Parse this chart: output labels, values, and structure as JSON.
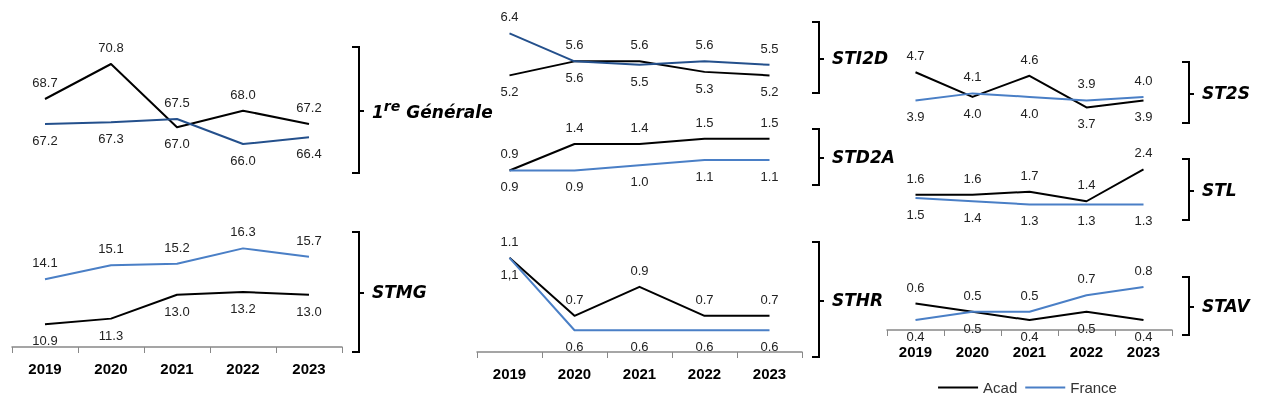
{
  "chart_data": [
    {
      "type": "line",
      "ylabel": "1$^{re}$ Générale",
      "categories": [
        "2019",
        "2020",
        "2021",
        "2022",
        "2023"
      ],
      "tick_labels": false,
      "marker": "none",
      "grid": false,
      "legend": false,
      "series": [
        {
          "color": "#000000",
          "values": [
            68.7,
            70.8,
            67.0,
            68.0,
            67.2
          ],
          "value_labels": [
            "68.7",
            "70.8",
            "67.0",
            "68.0",
            "67.2"
          ]
        },
        {
          "color": "#24508c",
          "values": [
            67.2,
            67.3,
            67.5,
            66.0,
            66.4
          ],
          "value_labels": [
            "67.2",
            "67.3",
            "67.5",
            "66.0",
            "66.4"
          ]
        }
      ]
    },
    {
      "type": "line",
      "ylabel": "STMG",
      "categories": [
        "2019",
        "2020",
        "2021",
        "2022",
        "2023"
      ],
      "tick_labels": "x",
      "marker": "none",
      "grid": false,
      "legend": false,
      "series": [
        {
          "color": "#000000",
          "values": [
            10.9,
            11.3,
            13.0,
            13.2,
            13.0
          ],
          "value_labels": [
            "10.9",
            "11.3",
            "13.0",
            "13.2",
            "13.0"
          ]
        },
        {
          "color": "#4a7fc6",
          "values": [
            14.1,
            15.1,
            15.2,
            16.3,
            15.7
          ],
          "value_labels": [
            "14.1",
            "15.1",
            "15.2",
            "16.3",
            "15.7"
          ]
        }
      ]
    },
    {
      "type": "line",
      "ylabel": "STI2D",
      "categories": [
        "2019",
        "2020",
        "2021",
        "2022",
        "2023"
      ],
      "tick_labels": false,
      "marker": "none",
      "grid": false,
      "legend": false,
      "series": [
        {
          "color": "#000000",
          "values": [
            5.2,
            5.6,
            5.6,
            5.3,
            5.2
          ],
          "value_labels": [
            "5.2",
            "5.6",
            "5.6",
            "5.3",
            "5.2"
          ]
        },
        {
          "color": "#24508c",
          "values": [
            6.4,
            5.6,
            5.5,
            5.6,
            5.5
          ],
          "value_labels": [
            "6.4",
            "5.6",
            "5.5",
            "5.6",
            "5.5"
          ]
        }
      ]
    },
    {
      "type": "line",
      "ylabel": "STD2A",
      "categories": [
        "2019",
        "2020",
        "2021",
        "2022",
        "2023"
      ],
      "tick_labels": false,
      "marker": "none",
      "grid": false,
      "legend": false,
      "series": [
        {
          "color": "#000000",
          "values": [
            0.9,
            1.4,
            1.4,
            1.5,
            1.5
          ],
          "value_labels": [
            "0.9",
            "1.4",
            "1.4",
            "1.5",
            "1.5"
          ]
        },
        {
          "color": "#4a7fc6",
          "values": [
            0.9,
            0.9,
            1.0,
            1.1,
            1.1
          ],
          "value_labels": [
            "0.9",
            "0.9",
            "1.0",
            "1.1",
            "1.1"
          ]
        }
      ]
    },
    {
      "type": "line",
      "ylabel": "STHR",
      "categories": [
        "2019",
        "2020",
        "2021",
        "2022",
        "2023"
      ],
      "tick_labels": "x",
      "marker": "none",
      "grid": false,
      "legend": false,
      "series": [
        {
          "color": "#000000",
          "values": [
            1.1,
            0.7,
            0.9,
            0.7,
            0.7
          ],
          "value_labels": [
            "1.1",
            "0.7",
            "0.9",
            "0.7",
            "0.7"
          ]
        },
        {
          "color": "#4a7fc6",
          "values": [
            1.1,
            0.6,
            0.6,
            0.6,
            0.6
          ],
          "value_labels": [
            "1,1",
            "0.6",
            "0.6",
            "0.6",
            "0.6"
          ]
        }
      ]
    },
    {
      "type": "line",
      "ylabel": "ST2S",
      "categories": [
        "2019",
        "2020",
        "2021",
        "2022",
        "2023"
      ],
      "tick_labels": false,
      "marker": "none",
      "grid": false,
      "legend": false,
      "series": [
        {
          "color": "#000000",
          "values": [
            4.7,
            4.0,
            4.6,
            3.7,
            3.9
          ],
          "value_labels": [
            "4.7",
            "4.0",
            "4.6",
            "3.7",
            "3.9"
          ]
        },
        {
          "color": "#4a7fc6",
          "values": [
            3.9,
            4.1,
            4.0,
            3.9,
            4.0
          ],
          "value_labels": [
            "3.9",
            "4.1",
            "4.0",
            "3.9",
            "4.0"
          ]
        }
      ]
    },
    {
      "type": "line",
      "ylabel": "STL",
      "categories": [
        "2019",
        "2020",
        "2021",
        "2022",
        "2023"
      ],
      "tick_labels": false,
      "marker": "none",
      "grid": false,
      "legend": false,
      "series": [
        {
          "color": "#000000",
          "values": [
            1.6,
            1.6,
            1.7,
            1.4,
            2.4
          ],
          "value_labels": [
            "1.6",
            "1.6",
            "1.7",
            "1.4",
            "2.4"
          ]
        },
        {
          "color": "#4a7fc6",
          "values": [
            1.5,
            1.4,
            1.3,
            1.3,
            1.3
          ],
          "value_labels": [
            "1.5",
            "1.4",
            "1.3",
            "1.3",
            "1.3"
          ]
        }
      ]
    },
    {
      "type": "line",
      "ylabel": "STAV",
      "categories": [
        "2019",
        "2020",
        "2021",
        "2022",
        "2023"
      ],
      "tick_labels": "x",
      "marker": "none",
      "grid": false,
      "legend": "bottom",
      "series": [
        {
          "name": "Acad",
          "color": "#000000",
          "values": [
            0.6,
            0.5,
            0.4,
            0.5,
            0.4
          ],
          "value_labels": [
            "0.6",
            "0.5",
            "0.4",
            "0.5",
            "0.4"
          ]
        },
        {
          "name": "France",
          "color": "#4a7fc6",
          "values": [
            0.4,
            0.5,
            0.5,
            0.7,
            0.8
          ],
          "value_labels": [
            "0.4",
            "0.5",
            "0.5",
            "0.7",
            "0.8"
          ]
        }
      ]
    }
  ]
}
